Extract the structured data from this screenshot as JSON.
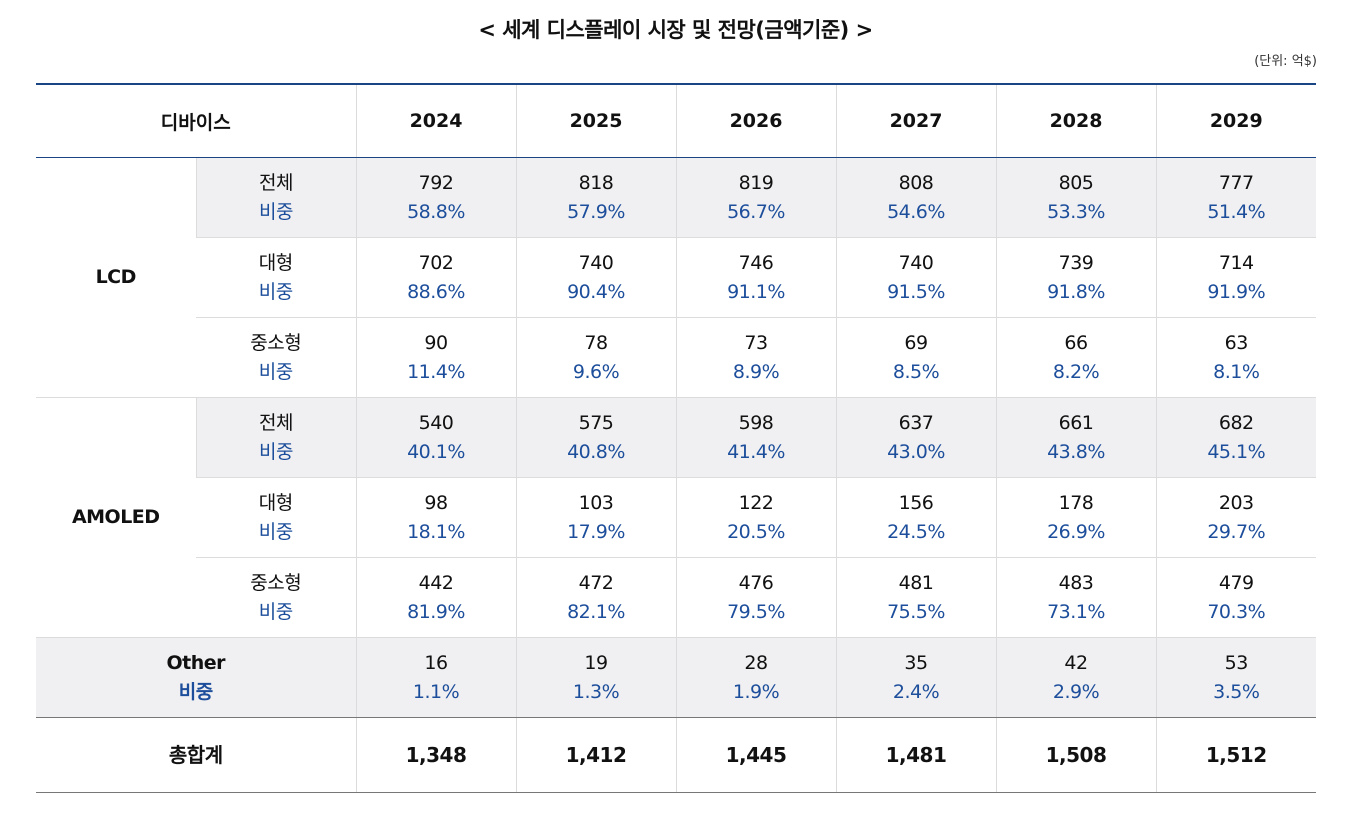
{
  "title": "< 세계 디스플레이 시장 및 전망(금액기준) >",
  "unit": "(단위: 억$)",
  "header": {
    "device": "디바이스",
    "years": [
      "2024",
      "2025",
      "2026",
      "2027",
      "2028",
      "2029"
    ]
  },
  "share_label": "비중",
  "groups": [
    {
      "name": "LCD",
      "rows": [
        {
          "label": "전체",
          "shaded": true,
          "values": [
            "792",
            "818",
            "819",
            "808",
            "805",
            "777"
          ],
          "shares": [
            "58.8%",
            "57.9%",
            "56.7%",
            "54.6%",
            "53.3%",
            "51.4%"
          ]
        },
        {
          "label": "대형",
          "shaded": false,
          "values": [
            "702",
            "740",
            "746",
            "740",
            "739",
            "714"
          ],
          "shares": [
            "88.6%",
            "90.4%",
            "91.1%",
            "91.5%",
            "91.8%",
            "91.9%"
          ]
        },
        {
          "label": "중소형",
          "shaded": false,
          "values": [
            "90",
            "78",
            "73",
            "69",
            "66",
            "63"
          ],
          "shares": [
            "11.4%",
            "9.6%",
            "8.9%",
            "8.5%",
            "8.2%",
            "8.1%"
          ]
        }
      ]
    },
    {
      "name": "AMOLED",
      "rows": [
        {
          "label": "전체",
          "shaded": true,
          "values": [
            "540",
            "575",
            "598",
            "637",
            "661",
            "682"
          ],
          "shares": [
            "40.1%",
            "40.8%",
            "41.4%",
            "43.0%",
            "43.8%",
            "45.1%"
          ]
        },
        {
          "label": "대형",
          "shaded": false,
          "values": [
            "98",
            "103",
            "122",
            "156",
            "178",
            "203"
          ],
          "shares": [
            "18.1%",
            "17.9%",
            "20.5%",
            "24.5%",
            "26.9%",
            "29.7%"
          ]
        },
        {
          "label": "중소형",
          "shaded": false,
          "values": [
            "442",
            "472",
            "476",
            "481",
            "483",
            "479"
          ],
          "shares": [
            "81.9%",
            "82.1%",
            "79.5%",
            "75.5%",
            "73.1%",
            "70.3%"
          ]
        }
      ]
    }
  ],
  "other": {
    "label": "Other",
    "values": [
      "16",
      "19",
      "28",
      "35",
      "42",
      "53"
    ],
    "shares": [
      "1.1%",
      "1.3%",
      "1.9%",
      "2.4%",
      "2.9%",
      "3.5%"
    ]
  },
  "total": {
    "label": "총합계",
    "values": [
      "1,348",
      "1,412",
      "1,445",
      "1,481",
      "1,508",
      "1,512"
    ]
  },
  "colors": {
    "accent": "#1a4585",
    "share_text": "#1d4e9b",
    "shade": "#f0f0f2"
  }
}
